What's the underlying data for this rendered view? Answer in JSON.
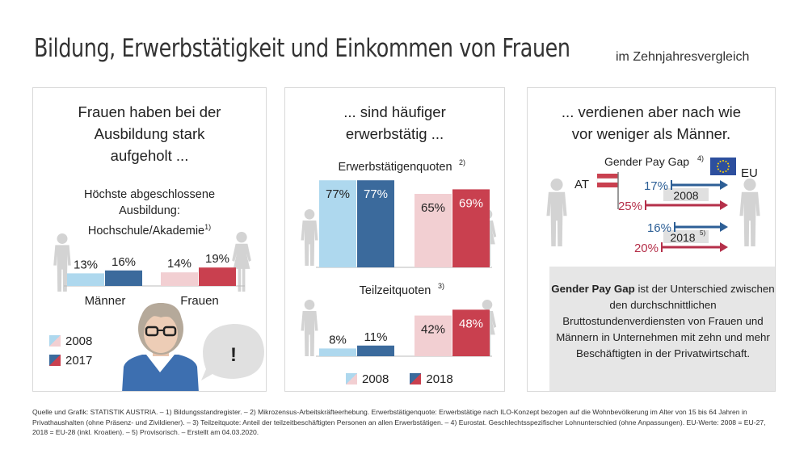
{
  "header": {
    "title": "Bildung, Erwerbstätigkeit und Einkommen von Frauen",
    "subtitle": "im Zehnjahresvergleich"
  },
  "colors": {
    "light_blue": "#aed8ee",
    "dark_blue": "#3b6a9c",
    "light_red": "#f2cfd2",
    "dark_red": "#c9404f",
    "figure_grey": "#d3d3d3",
    "gray_box": "#e6e6e6",
    "arrow_blue": "#2d5f96",
    "arrow_red": "#b5304a"
  },
  "panel1": {
    "headline": "Frauen haben bei der Ausbildung stark aufgeholt ...",
    "subheading": "Höchste abgeschlossene Ausbildung: Hochschule/Akademie",
    "subheading_sup": "1)",
    "legend": [
      "2008",
      "2017"
    ],
    "icons": [
      "man-icon",
      "woman-icon",
      "woman-avatar-icon",
      "speech-bubble-icon"
    ],
    "speech_text": "!"
  },
  "panel2": {
    "headline": "... sind häufiger erwerbstätig ...",
    "legend": [
      "2008",
      "2018"
    ]
  },
  "panel3": {
    "headline": "... verdienen aber nach wie vor weniger als Männer.",
    "gpg_title": "Gender Pay Gap",
    "gpg_sup": "4)",
    "at_label": "AT",
    "eu_label": "EU",
    "year_2008": "2008",
    "year_2018": "2018",
    "year_2018_sup": "5)",
    "box_bold": "Gender Pay Gap",
    "box_text": " ist der Unterschied zwischen den durchschnittlichen Bruttostundenverdiensten von Frauen und Männern in Unternehmen mit zehn und mehr Beschäftigten in der Privatwirtschaft."
  },
  "footnote": "Quelle und Grafik: STATISTIK AUSTRIA. – 1) Bildungsstandregister. – 2) Mikrozensus-Arbeitskräfteerhebung. Erwerbstätigenquote: Erwerbstätige nach ILO-Konzept bezogen auf die Wohnbevölkerung im Alter von 15 bis 64 Jahren in Privathaushalten (ohne Präsenz- und Zivildiener). – 3) Teilzeitquote: Anteil der teilzeitbeschäftigten Personen an allen Erwerbstätigen. – 4) Eurostat. Geschlechtsspezifischer Lohnunterschied (ohne Anpassungen). EU-Werte: 2008 = EU-27, 2018 = EU-28 (inkl. Kroatien). – 5) Provisorisch. – Erstellt am 04.03.2020.",
  "chart_data": [
    {
      "type": "bar",
      "title": "Höchste abgeschlossene Ausbildung: Hochschule/Akademie",
      "categories": [
        "Männer",
        "Frauen"
      ],
      "series": [
        {
          "name": "2008",
          "values": [
            13,
            14
          ]
        },
        {
          "name": "2017",
          "values": [
            16,
            19
          ]
        }
      ],
      "labels": [
        [
          "13%",
          "16%"
        ],
        [
          "14%",
          "19%"
        ]
      ],
      "unit": "%"
    },
    {
      "type": "bar",
      "title": "Erwerbstätigenquoten",
      "title_sup": "2)",
      "categories": [
        "Männer",
        "Frauen"
      ],
      "series": [
        {
          "name": "2008",
          "values": [
            77,
            65
          ]
        },
        {
          "name": "2018",
          "values": [
            77,
            69
          ]
        }
      ],
      "labels": [
        [
          "77%",
          "77%"
        ],
        [
          "65%",
          "69%"
        ]
      ],
      "unit": "%"
    },
    {
      "type": "bar",
      "title": "Teilzeitquoten",
      "title_sup": "3)",
      "categories": [
        "Männer",
        "Frauen"
      ],
      "series": [
        {
          "name": "2008",
          "values": [
            8,
            42
          ]
        },
        {
          "name": "2018",
          "values": [
            11,
            48
          ]
        }
      ],
      "labels": [
        [
          "8%",
          "11%"
        ],
        [
          "42%",
          "48%"
        ]
      ],
      "unit": "%"
    },
    {
      "type": "bar",
      "title": "Gender Pay Gap",
      "categories": [
        "2008",
        "2018"
      ],
      "series": [
        {
          "name": "AT",
          "values": [
            25,
            20
          ]
        },
        {
          "name": "EU",
          "values": [
            17,
            16
          ]
        }
      ],
      "labels": [
        [
          "25%",
          "20%"
        ],
        [
          "17%",
          "16%"
        ]
      ],
      "unit": "%"
    }
  ]
}
